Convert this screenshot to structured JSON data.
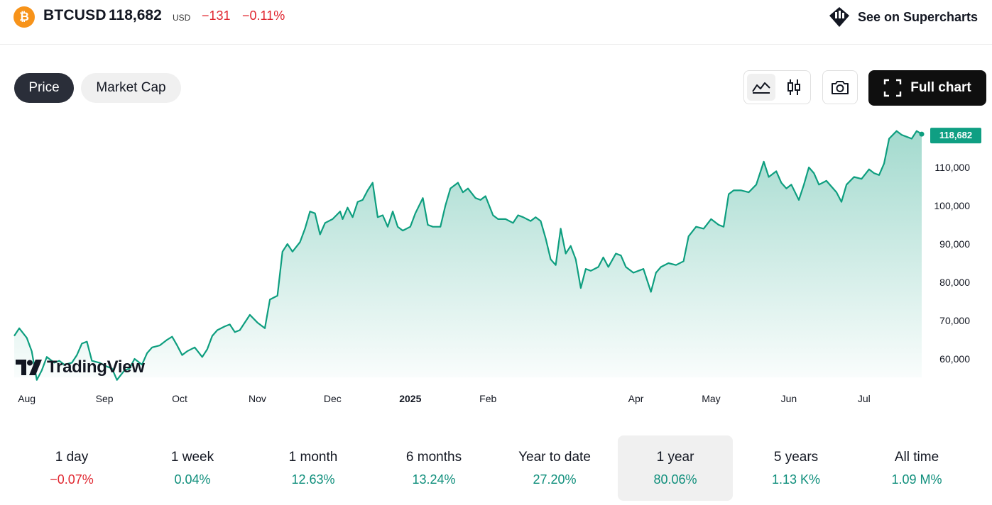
{
  "header": {
    "symbol": "BTCUSD",
    "price": "118,682",
    "currency": "USD",
    "change": "−131",
    "change_percent": "−0.11%",
    "supercharts_label": "See on Supercharts"
  },
  "toggles": {
    "price_label": "Price",
    "market_cap_label": "Market Cap"
  },
  "toolbar": {
    "full_chart_label": "Full chart",
    "icons": [
      "area-chart-icon",
      "candles-icon",
      "camera-icon",
      "fullscreen-icon"
    ]
  },
  "colors": {
    "line": "#0e9e7f",
    "accent_label_bg": "#0f9f83",
    "negative": "#e0262f",
    "positive": "#0e8e7b"
  },
  "branding": {
    "watermark": "TradingView"
  },
  "chart_data": {
    "type": "area",
    "x_ticks": [
      "Aug",
      "Sep",
      "Oct",
      "Nov",
      "Dec",
      "2025",
      "Feb",
      "Apr",
      "May",
      "Jun",
      "Jul"
    ],
    "y_ticks": [
      "110,000",
      "100,000",
      "90,000",
      "80,000",
      "70,000",
      "60,000"
    ],
    "ylim": [
      55000,
      120000
    ],
    "last_value": 118682,
    "last_value_label": "118,682",
    "series": [
      {
        "points": [
          [
            "2024-07-27",
            66000
          ],
          [
            "2024-07-29",
            68000
          ],
          [
            "2024-08-01",
            65500
          ],
          [
            "2024-08-03",
            62000
          ],
          [
            "2024-08-05",
            54500
          ],
          [
            "2024-08-07",
            57000
          ],
          [
            "2024-08-09",
            60500
          ],
          [
            "2024-08-12",
            59000
          ],
          [
            "2024-08-14",
            59500
          ],
          [
            "2024-08-16",
            58500
          ],
          [
            "2024-08-19",
            59000
          ],
          [
            "2024-08-21",
            61000
          ],
          [
            "2024-08-23",
            64000
          ],
          [
            "2024-08-25",
            64500
          ],
          [
            "2024-08-27",
            59500
          ],
          [
            "2024-08-30",
            59000
          ],
          [
            "2024-09-02",
            58000
          ],
          [
            "2024-09-04",
            57500
          ],
          [
            "2024-09-06",
            54500
          ],
          [
            "2024-09-09",
            57000
          ],
          [
            "2024-09-11",
            57500
          ],
          [
            "2024-09-13",
            60000
          ],
          [
            "2024-09-16",
            58500
          ],
          [
            "2024-09-18",
            61500
          ],
          [
            "2024-09-20",
            63000
          ],
          [
            "2024-09-23",
            63500
          ],
          [
            "2024-09-26",
            65000
          ],
          [
            "2024-09-28",
            65800
          ],
          [
            "2024-09-30",
            63500
          ],
          [
            "2024-10-02",
            61000
          ],
          [
            "2024-10-04",
            62000
          ],
          [
            "2024-10-07",
            63000
          ],
          [
            "2024-10-10",
            60500
          ],
          [
            "2024-10-12",
            62500
          ],
          [
            "2024-10-14",
            66000
          ],
          [
            "2024-10-16",
            67500
          ],
          [
            "2024-10-19",
            68500
          ],
          [
            "2024-10-21",
            69000
          ],
          [
            "2024-10-23",
            67000
          ],
          [
            "2024-10-25",
            67500
          ],
          [
            "2024-10-29",
            71500
          ],
          [
            "2024-11-01",
            69500
          ],
          [
            "2024-11-04",
            68000
          ],
          [
            "2024-11-06",
            75500
          ],
          [
            "2024-11-09",
            76500
          ],
          [
            "2024-11-11",
            88000
          ],
          [
            "2024-11-13",
            90000
          ],
          [
            "2024-11-15",
            88000
          ],
          [
            "2024-11-18",
            90500
          ],
          [
            "2024-11-20",
            94000
          ],
          [
            "2024-11-22",
            98500
          ],
          [
            "2024-11-24",
            98000
          ],
          [
            "2024-11-26",
            92500
          ],
          [
            "2024-11-28",
            95500
          ],
          [
            "2024-12-01",
            96500
          ],
          [
            "2024-12-04",
            98500
          ],
          [
            "2024-12-05",
            96500
          ],
          [
            "2024-12-07",
            99500
          ],
          [
            "2024-12-09",
            97000
          ],
          [
            "2024-12-11",
            101000
          ],
          [
            "2024-12-13",
            101500
          ],
          [
            "2024-12-15",
            104000
          ],
          [
            "2024-12-17",
            106000
          ],
          [
            "2024-12-19",
            97000
          ],
          [
            "2024-12-21",
            97500
          ],
          [
            "2024-12-23",
            94500
          ],
          [
            "2024-12-25",
            98500
          ],
          [
            "2024-12-27",
            94500
          ],
          [
            "2024-12-29",
            93500
          ],
          [
            "2025-01-01",
            94500
          ],
          [
            "2025-01-03",
            98000
          ],
          [
            "2025-01-06",
            102000
          ],
          [
            "2025-01-08",
            95000
          ],
          [
            "2025-01-10",
            94500
          ],
          [
            "2025-01-13",
            94500
          ],
          [
            "2025-01-15",
            100000
          ],
          [
            "2025-01-17",
            104500
          ],
          [
            "2025-01-20",
            106000
          ],
          [
            "2025-01-22",
            103500
          ],
          [
            "2025-01-24",
            104500
          ],
          [
            "2025-01-27",
            102000
          ],
          [
            "2025-01-29",
            101500
          ],
          [
            "2025-01-31",
            102500
          ],
          [
            "2025-02-03",
            97500
          ],
          [
            "2025-02-05",
            96500
          ],
          [
            "2025-02-08",
            96500
          ],
          [
            "2025-02-11",
            95500
          ],
          [
            "2025-02-13",
            97500
          ],
          [
            "2025-02-15",
            97000
          ],
          [
            "2025-02-18",
            96000
          ],
          [
            "2025-02-20",
            97000
          ],
          [
            "2025-02-22",
            96000
          ],
          [
            "2025-02-24",
            91500
          ],
          [
            "2025-02-26",
            86000
          ],
          [
            "2025-02-28",
            84500
          ],
          [
            "2025-03-02",
            94000
          ],
          [
            "2025-03-04",
            87500
          ],
          [
            "2025-03-06",
            89500
          ],
          [
            "2025-03-08",
            86000
          ],
          [
            "2025-03-10",
            78500
          ],
          [
            "2025-03-12",
            83500
          ],
          [
            "2025-03-14",
            83000
          ],
          [
            "2025-03-17",
            84000
          ],
          [
            "2025-03-19",
            86500
          ],
          [
            "2025-03-21",
            84000
          ],
          [
            "2025-03-24",
            87500
          ],
          [
            "2025-03-26",
            87000
          ],
          [
            "2025-03-28",
            84000
          ],
          [
            "2025-03-31",
            82500
          ],
          [
            "2025-04-02",
            83000
          ],
          [
            "2025-04-04",
            83500
          ],
          [
            "2025-04-07",
            77500
          ],
          [
            "2025-04-09",
            82500
          ],
          [
            "2025-04-11",
            84000
          ],
          [
            "2025-04-14",
            85000
          ],
          [
            "2025-04-17",
            84500
          ],
          [
            "2025-04-20",
            85500
          ],
          [
            "2025-04-22",
            92000
          ],
          [
            "2025-04-25",
            94500
          ],
          [
            "2025-04-28",
            94000
          ],
          [
            "2025-05-01",
            96500
          ],
          [
            "2025-05-04",
            95000
          ],
          [
            "2025-05-06",
            94500
          ],
          [
            "2025-05-08",
            103000
          ],
          [
            "2025-05-10",
            104000
          ],
          [
            "2025-05-13",
            104000
          ],
          [
            "2025-05-16",
            103500
          ],
          [
            "2025-05-19",
            105500
          ],
          [
            "2025-05-22",
            111500
          ],
          [
            "2025-05-24",
            107500
          ],
          [
            "2025-05-27",
            109000
          ],
          [
            "2025-05-29",
            106000
          ],
          [
            "2025-05-31",
            104500
          ],
          [
            "2025-06-02",
            105500
          ],
          [
            "2025-06-05",
            101500
          ],
          [
            "2025-06-07",
            105500
          ],
          [
            "2025-06-09",
            110000
          ],
          [
            "2025-06-11",
            108500
          ],
          [
            "2025-06-13",
            105500
          ],
          [
            "2025-06-16",
            106500
          ],
          [
            "2025-06-18",
            105000
          ],
          [
            "2025-06-20",
            103500
          ],
          [
            "2025-06-22",
            101000
          ],
          [
            "2025-06-24",
            105500
          ],
          [
            "2025-06-27",
            107500
          ],
          [
            "2025-06-30",
            107000
          ],
          [
            "2025-07-03",
            109500
          ],
          [
            "2025-07-05",
            108500
          ],
          [
            "2025-07-07",
            108000
          ],
          [
            "2025-07-09",
            111000
          ],
          [
            "2025-07-11",
            117500
          ],
          [
            "2025-07-14",
            119500
          ],
          [
            "2025-07-16",
            118500
          ],
          [
            "2025-07-18",
            118000
          ],
          [
            "2025-07-20",
            117500
          ],
          [
            "2025-07-22",
            119500
          ],
          [
            "2025-07-24",
            118682
          ]
        ]
      }
    ]
  },
  "periods": [
    {
      "label": "1 day",
      "value": "−0.07%",
      "positive": false,
      "active": false
    },
    {
      "label": "1 week",
      "value": "0.04%",
      "positive": true,
      "active": false
    },
    {
      "label": "1 month",
      "value": "12.63%",
      "positive": true,
      "active": false
    },
    {
      "label": "6 months",
      "value": "13.24%",
      "positive": true,
      "active": false
    },
    {
      "label": "Year to date",
      "value": "27.20%",
      "positive": true,
      "active": false
    },
    {
      "label": "1 year",
      "value": "80.06%",
      "positive": true,
      "active": true
    },
    {
      "label": "5 years",
      "value": "1.13 K%",
      "positive": true,
      "active": false
    },
    {
      "label": "All time",
      "value": "1.09 M%",
      "positive": true,
      "active": false
    }
  ]
}
